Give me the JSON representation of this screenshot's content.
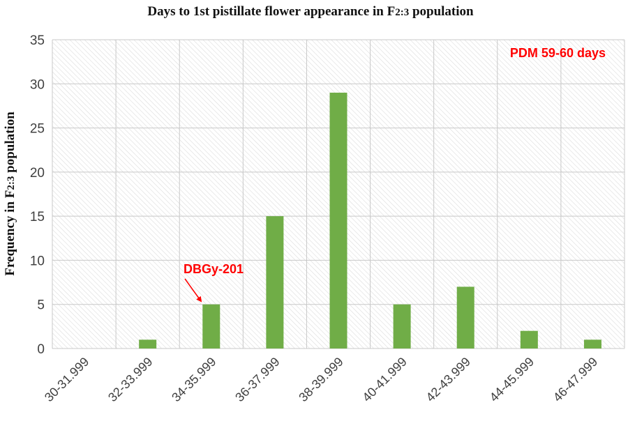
{
  "chart_data": {
    "type": "bar",
    "title_parts": [
      "Days to 1st  pistillate flower appearance in F",
      "2:3",
      " population"
    ],
    "ylabel_parts": [
      "Frequency in F",
      "2:3",
      " population"
    ],
    "xlabel": "",
    "categories": [
      "30-31.999",
      "32-33.999",
      "34-35.999",
      "36-37.999",
      "38-39.999",
      "40-41.999",
      "42-43.999",
      "44-45.999",
      "46-47.999"
    ],
    "values": [
      0,
      1,
      5,
      15,
      29,
      5,
      7,
      2,
      1
    ],
    "ylim": [
      0,
      35
    ],
    "yticks": [
      0,
      5,
      10,
      15,
      20,
      25,
      30,
      35
    ],
    "grid": true,
    "legend": "none",
    "bar_color": "#70ad47",
    "annotations": [
      {
        "text": "PDM 59-60 days",
        "color": "#ff0000"
      },
      {
        "text": "DBGy-201",
        "color": "#ff0000",
        "points_to": "34-35.999"
      }
    ]
  }
}
